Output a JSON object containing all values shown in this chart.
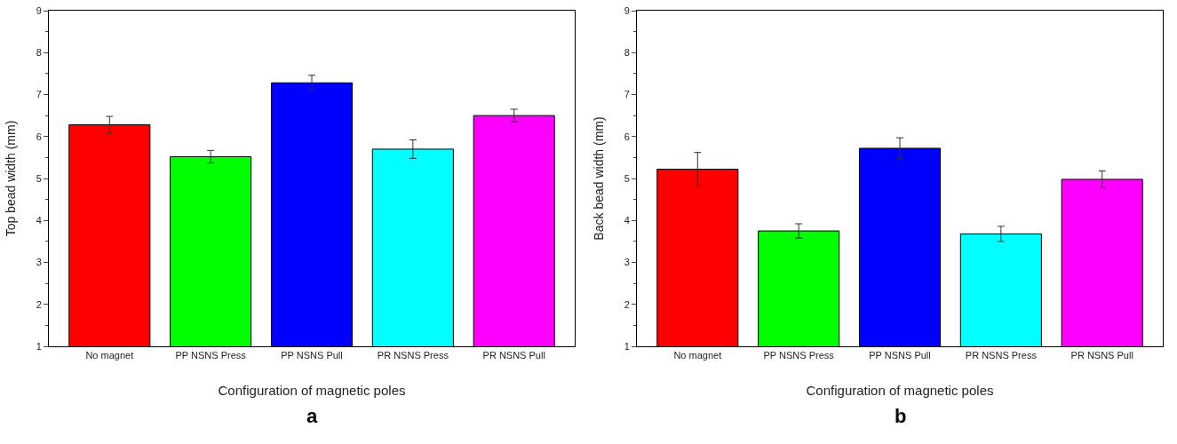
{
  "chart_data": [
    {
      "type": "bar",
      "xlabel": "Configuration of magnetic poles",
      "ylabel": "Top bead width (mm)",
      "categories": [
        "No magnet",
        "PP NSNS Press",
        "PP NSNS Pull",
        "PR NSNS Press",
        "PR NSNS Pull"
      ],
      "values": [
        6.28,
        5.52,
        7.28,
        5.7,
        6.5
      ],
      "errors": [
        0.2,
        0.15,
        0.18,
        0.22,
        0.15
      ],
      "colors": [
        "#ff0000",
        "#00ff00",
        "#0000ff",
        "#00ffff",
        "#ff00ff"
      ],
      "ylim": [
        1,
        9
      ],
      "yticks": [
        1,
        2,
        3,
        4,
        5,
        6,
        7,
        8,
        9
      ],
      "grid": false,
      "annotations": [
        "a"
      ]
    },
    {
      "type": "bar",
      "xlabel": "Configuration of magnetic poles",
      "ylabel": "Back bead width (mm)",
      "categories": [
        "No magnet",
        "PP NSNS Press",
        "PP NSNS Pull",
        "PR NSNS Press",
        "PR NSNS Pull"
      ],
      "values": [
        5.22,
        3.75,
        5.72,
        3.68,
        4.98
      ],
      "errors": [
        0.4,
        0.17,
        0.25,
        0.18,
        0.2
      ],
      "colors": [
        "#ff0000",
        "#00ff00",
        "#0000ff",
        "#00ffff",
        "#ff00ff"
      ],
      "ylim": [
        1,
        9
      ],
      "yticks": [
        1,
        2,
        3,
        4,
        5,
        6,
        7,
        8,
        9
      ],
      "grid": false,
      "annotations": [
        "b"
      ]
    }
  ]
}
